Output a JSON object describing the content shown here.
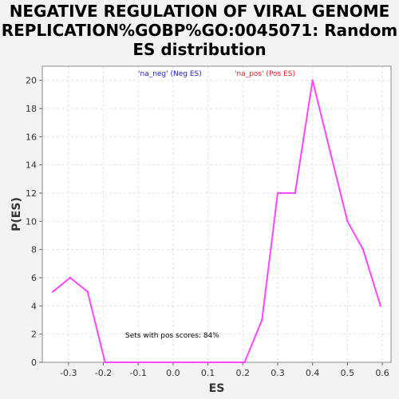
{
  "title_lines": [
    "NEGATIVE REGULATION OF VIRAL GENOME",
    "REPLICATION%GOBP%GO:0045071: Random",
    "ES distribution"
  ],
  "colors": {
    "background": "#f2f2f2",
    "plot_bg": "#ffffff",
    "line": "#ff44ff",
    "legend_neg": "#2222cc",
    "legend_pos": "#dd2222",
    "grid": "#e0e0e0"
  },
  "chart_data": {
    "type": "line",
    "title": "NEGATIVE REGULATION OF VIRAL GENOME REPLICATION%GOBP%GO:0045071: Random ES distribution",
    "xlabel": "ES",
    "ylabel": "P(ES)",
    "xlim": [
      -0.375,
      0.625
    ],
    "ylim": [
      0,
      21
    ],
    "xticks": [
      -0.3,
      -0.2,
      -0.1,
      0.0,
      0.1,
      0.2,
      0.3,
      0.4,
      0.5,
      0.6
    ],
    "xtick_labels": [
      "-0.3",
      "-0.2",
      "-0.1",
      "0.0",
      "0.1",
      "0.2",
      "0.3",
      "0.4",
      "0.5",
      "0.6"
    ],
    "yticks": [
      0,
      2,
      4,
      6,
      8,
      10,
      12,
      14,
      16,
      18,
      20
    ],
    "ytick_labels": [
      "0",
      "2",
      "4",
      "6",
      "8",
      "10",
      "12",
      "14",
      "16",
      "18",
      "20"
    ],
    "grid": true,
    "legend": [
      "'na_neg' (Neg ES)",
      "'na_pos' (Pos ES)"
    ],
    "annotation": "Sets with pos scores: 84%",
    "series": [
      {
        "x": [
          -0.345,
          -0.295,
          -0.245,
          -0.195,
          -0.145,
          -0.095,
          -0.045,
          0.005,
          0.055,
          0.105,
          0.155,
          0.205,
          0.255,
          0.3,
          0.35,
          0.4,
          0.45,
          0.5,
          0.545,
          0.595
        ],
        "values": [
          5,
          6,
          5,
          0,
          0,
          0,
          0,
          0,
          0,
          0,
          0,
          0,
          3,
          12,
          12,
          20,
          15,
          10,
          8,
          4
        ]
      }
    ]
  }
}
